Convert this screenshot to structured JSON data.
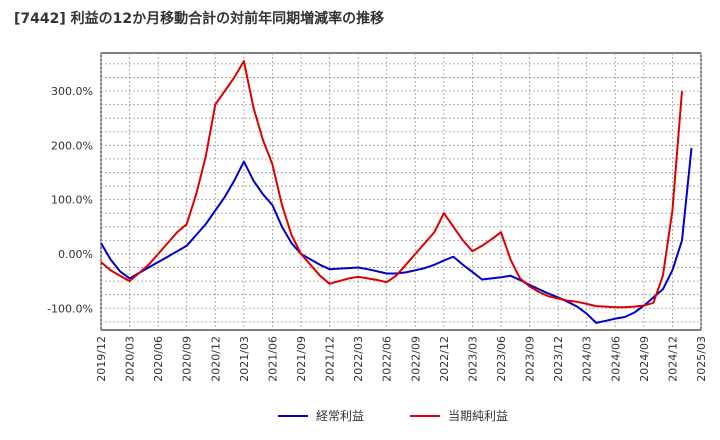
{
  "chart_data": {
    "type": "line",
    "title": "[7442]  利益の12か月移動合計の対前年同期増減率の推移",
    "xlabel": "",
    "ylabel": "",
    "x_ticks": [
      "2019/12",
      "2020/03",
      "2020/06",
      "2020/09",
      "2020/12",
      "2021/03",
      "2021/06",
      "2021/09",
      "2021/12",
      "2022/03",
      "2022/06",
      "2022/09",
      "2022/12",
      "2023/03",
      "2023/06",
      "2023/09",
      "2023/12",
      "2024/03",
      "2024/06",
      "2024/09",
      "2024/12",
      "2025/03"
    ],
    "y_ticks": [
      "300.0%",
      "200.0%",
      "100.0%",
      "0.00%",
      "-100.0%"
    ],
    "y_tick_values": [
      300,
      200,
      100,
      0,
      -100
    ],
    "ylim": [
      -140,
      370
    ],
    "x_index_range": [
      0,
      63
    ],
    "grid": true,
    "legend_position": "bottom",
    "series": [
      {
        "name": "経常利益",
        "color": "#0000cc",
        "values": [
          {
            "i": 0,
            "v": 20
          },
          {
            "i": 1,
            "v": -10
          },
          {
            "i": 2,
            "v": -32
          },
          {
            "i": 3,
            "v": -45
          },
          {
            "i": 4,
            "v": -35
          },
          {
            "i": 5,
            "v": -25
          },
          {
            "i": 6,
            "v": -15
          },
          {
            "i": 7,
            "v": -5
          },
          {
            "i": 8,
            "v": 5
          },
          {
            "i": 9,
            "v": 15
          },
          {
            "i": 10,
            "v": 35
          },
          {
            "i": 11,
            "v": 55
          },
          {
            "i": 12,
            "v": 80
          },
          {
            "i": 13,
            "v": 105
          },
          {
            "i": 14,
            "v": 135
          },
          {
            "i": 15,
            "v": 170
          },
          {
            "i": 16,
            "v": 135
          },
          {
            "i": 17,
            "v": 110
          },
          {
            "i": 18,
            "v": 90
          },
          {
            "i": 19,
            "v": 50
          },
          {
            "i": 20,
            "v": 20
          },
          {
            "i": 21,
            "v": 0
          },
          {
            "i": 22,
            "v": -10
          },
          {
            "i": 23,
            "v": -20
          },
          {
            "i": 24,
            "v": -28
          },
          {
            "i": 25,
            "v": -27
          },
          {
            "i": 26,
            "v": -26
          },
          {
            "i": 27,
            "v": -25
          },
          {
            "i": 28,
            "v": -28
          },
          {
            "i": 29,
            "v": -32
          },
          {
            "i": 30,
            "v": -36
          },
          {
            "i": 31,
            "v": -36
          },
          {
            "i": 32,
            "v": -34
          },
          {
            "i": 33,
            "v": -30
          },
          {
            "i": 34,
            "v": -26
          },
          {
            "i": 35,
            "v": -20
          },
          {
            "i": 36,
            "v": -12
          },
          {
            "i": 37,
            "v": -5
          },
          {
            "i": 38,
            "v": -20
          },
          {
            "i": 39,
            "v": -33
          },
          {
            "i": 40,
            "v": -47
          },
          {
            "i": 41,
            "v": -45
          },
          {
            "i": 42,
            "v": -43
          },
          {
            "i": 43,
            "v": -40
          },
          {
            "i": 44,
            "v": -48
          },
          {
            "i": 45,
            "v": -57
          },
          {
            "i": 46,
            "v": -65
          },
          {
            "i": 47,
            "v": -73
          },
          {
            "i": 48,
            "v": -80
          },
          {
            "i": 49,
            "v": -88
          },
          {
            "i": 50,
            "v": -97
          },
          {
            "i": 51,
            "v": -110
          },
          {
            "i": 52,
            "v": -127
          },
          {
            "i": 53,
            "v": -123
          },
          {
            "i": 54,
            "v": -119
          },
          {
            "i": 55,
            "v": -116
          },
          {
            "i": 56,
            "v": -108
          },
          {
            "i": 57,
            "v": -95
          },
          {
            "i": 58,
            "v": -80
          },
          {
            "i": 59,
            "v": -65
          },
          {
            "i": 60,
            "v": -30
          },
          {
            "i": 61,
            "v": 25
          },
          {
            "i": 62,
            "v": 195
          }
        ]
      },
      {
        "name": "当期純利益",
        "color": "#dd0000",
        "values": [
          {
            "i": 0,
            "v": -15
          },
          {
            "i": 1,
            "v": -30
          },
          {
            "i": 2,
            "v": -40
          },
          {
            "i": 3,
            "v": -50
          },
          {
            "i": 4,
            "v": -35
          },
          {
            "i": 5,
            "v": -20
          },
          {
            "i": 6,
            "v": 0
          },
          {
            "i": 7,
            "v": 20
          },
          {
            "i": 8,
            "v": 40
          },
          {
            "i": 9,
            "v": 55
          },
          {
            "i": 10,
            "v": 110
          },
          {
            "i": 11,
            "v": 180
          },
          {
            "i": 12,
            "v": 275
          },
          {
            "i": 13,
            "v": 300
          },
          {
            "i": 14,
            "v": 325
          },
          {
            "i": 15,
            "v": 355
          },
          {
            "i": 16,
            "v": 270
          },
          {
            "i": 17,
            "v": 210
          },
          {
            "i": 18,
            "v": 165
          },
          {
            "i": 19,
            "v": 90
          },
          {
            "i": 20,
            "v": 35
          },
          {
            "i": 21,
            "v": 0
          },
          {
            "i": 22,
            "v": -20
          },
          {
            "i": 23,
            "v": -40
          },
          {
            "i": 24,
            "v": -55
          },
          {
            "i": 25,
            "v": -50
          },
          {
            "i": 26,
            "v": -45
          },
          {
            "i": 27,
            "v": -42
          },
          {
            "i": 28,
            "v": -45
          },
          {
            "i": 29,
            "v": -48
          },
          {
            "i": 30,
            "v": -52
          },
          {
            "i": 31,
            "v": -40
          },
          {
            "i": 32,
            "v": -20
          },
          {
            "i": 33,
            "v": 0
          },
          {
            "i": 34,
            "v": 20
          },
          {
            "i": 35,
            "v": 40
          },
          {
            "i": 36,
            "v": 75
          },
          {
            "i": 37,
            "v": 50
          },
          {
            "i": 38,
            "v": 25
          },
          {
            "i": 39,
            "v": 5
          },
          {
            "i": 40,
            "v": 15
          },
          {
            "i": 41,
            "v": 27
          },
          {
            "i": 42,
            "v": 40
          },
          {
            "i": 43,
            "v": -10
          },
          {
            "i": 44,
            "v": -45
          },
          {
            "i": 45,
            "v": -60
          },
          {
            "i": 46,
            "v": -70
          },
          {
            "i": 47,
            "v": -78
          },
          {
            "i": 48,
            "v": -82
          },
          {
            "i": 49,
            "v": -86
          },
          {
            "i": 50,
            "v": -88
          },
          {
            "i": 51,
            "v": -92
          },
          {
            "i": 52,
            "v": -96
          },
          {
            "i": 53,
            "v": -97
          },
          {
            "i": 54,
            "v": -98
          },
          {
            "i": 55,
            "v": -98
          },
          {
            "i": 56,
            "v": -97
          },
          {
            "i": 57,
            "v": -95
          },
          {
            "i": 58,
            "v": -90
          },
          {
            "i": 59,
            "v": -40
          },
          {
            "i": 60,
            "v": 80
          },
          {
            "i": 61,
            "v": 300
          }
        ]
      }
    ]
  }
}
